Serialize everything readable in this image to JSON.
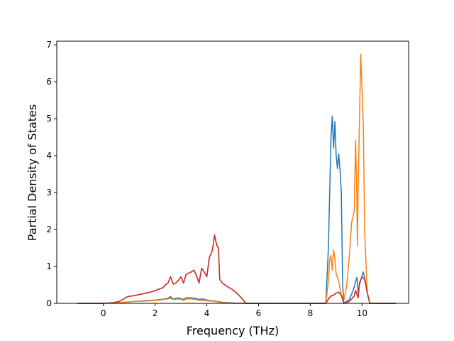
{
  "chart_data": {
    "type": "line",
    "xlabel": "Frequency (THz)",
    "ylabel": "Partial Density of States",
    "xlim": [
      -1.8,
      11.8
    ],
    "ylim": [
      0,
      7.1
    ],
    "xticks": [
      0,
      2,
      4,
      6,
      8,
      10
    ],
    "yticks": [
      0,
      1,
      2,
      3,
      4,
      5,
      6,
      7
    ],
    "grid": false,
    "series": [
      {
        "color": "#1f77b4",
        "points": [
          [
            -1.0,
            0
          ],
          [
            0,
            0
          ],
          [
            0.4,
            0.01
          ],
          [
            0.8,
            0.03
          ],
          [
            1.2,
            0.05
          ],
          [
            1.6,
            0.07
          ],
          [
            2.0,
            0.09
          ],
          [
            2.3,
            0.11
          ],
          [
            2.5,
            0.14
          ],
          [
            2.6,
            0.18
          ],
          [
            2.7,
            0.12
          ],
          [
            2.9,
            0.15
          ],
          [
            3.0,
            0.13
          ],
          [
            3.1,
            0.1
          ],
          [
            3.2,
            0.15
          ],
          [
            3.4,
            0.15
          ],
          [
            3.6,
            0.13
          ],
          [
            3.7,
            0.1
          ],
          [
            3.8,
            0.12
          ],
          [
            4.0,
            0.09
          ],
          [
            4.2,
            0.07
          ],
          [
            4.4,
            0.05
          ],
          [
            4.6,
            0.03
          ],
          [
            4.8,
            0.02
          ],
          [
            5.0,
            0.01
          ],
          [
            5.3,
            0
          ],
          [
            8.6,
            0
          ],
          [
            8.7,
            1.5
          ],
          [
            8.8,
            4.5
          ],
          [
            8.85,
            5.07
          ],
          [
            8.9,
            4.2
          ],
          [
            8.95,
            4.92
          ],
          [
            9.0,
            4.0
          ],
          [
            9.05,
            3.65
          ],
          [
            9.1,
            4.05
          ],
          [
            9.15,
            3.6
          ],
          [
            9.2,
            3.0
          ],
          [
            9.25,
            0.5
          ],
          [
            9.3,
            0
          ],
          [
            9.5,
            0.1
          ],
          [
            9.6,
            0.25
          ],
          [
            9.7,
            0.45
          ],
          [
            9.8,
            0.7
          ],
          [
            9.85,
            0.3
          ],
          [
            9.9,
            0.5
          ],
          [
            10.0,
            0.75
          ],
          [
            10.05,
            0.85
          ],
          [
            10.1,
            0.7
          ],
          [
            10.2,
            0.3
          ],
          [
            10.3,
            0
          ],
          [
            11.3,
            0
          ]
        ]
      },
      {
        "color": "#ff7f0e",
        "points": [
          [
            -1.0,
            0
          ],
          [
            0,
            0
          ],
          [
            0.4,
            0.01
          ],
          [
            0.8,
            0.03
          ],
          [
            1.2,
            0.05
          ],
          [
            1.6,
            0.06
          ],
          [
            2.0,
            0.08
          ],
          [
            2.3,
            0.1
          ],
          [
            2.5,
            0.12
          ],
          [
            2.6,
            0.14
          ],
          [
            2.7,
            0.1
          ],
          [
            2.9,
            0.12
          ],
          [
            3.0,
            0.11
          ],
          [
            3.1,
            0.08
          ],
          [
            3.2,
            0.12
          ],
          [
            3.4,
            0.12
          ],
          [
            3.6,
            0.1
          ],
          [
            3.7,
            0.08
          ],
          [
            3.8,
            0.09
          ],
          [
            4.0,
            0.07
          ],
          [
            4.2,
            0.06
          ],
          [
            4.4,
            0.04
          ],
          [
            4.6,
            0.02
          ],
          [
            4.8,
            0.01
          ],
          [
            5.0,
            0
          ],
          [
            8.6,
            0
          ],
          [
            8.7,
            0.6
          ],
          [
            8.75,
            1.2
          ],
          [
            8.8,
            1.3
          ],
          [
            8.85,
            0.9
          ],
          [
            8.9,
            1.45
          ],
          [
            8.95,
            1.2
          ],
          [
            9.0,
            0.8
          ],
          [
            9.1,
            0.6
          ],
          [
            9.2,
            0.2
          ],
          [
            9.3,
            0.1
          ],
          [
            9.4,
            0.45
          ],
          [
            9.5,
            1.2
          ],
          [
            9.6,
            2.2
          ],
          [
            9.7,
            2.5
          ],
          [
            9.75,
            4.42
          ],
          [
            9.8,
            2.9
          ],
          [
            9.82,
            1.55
          ],
          [
            9.85,
            3.1
          ],
          [
            9.95,
            6.75
          ],
          [
            10.0,
            5.8
          ],
          [
            10.05,
            4.8
          ],
          [
            10.1,
            2.0
          ],
          [
            10.2,
            0.3
          ],
          [
            10.3,
            0
          ],
          [
            11.3,
            0
          ]
        ]
      },
      {
        "color": "#2ca02c",
        "points": [
          [
            -1.0,
            0
          ],
          [
            0,
            0
          ],
          [
            0.4,
            0.02
          ],
          [
            0.6,
            0.05
          ],
          [
            0.8,
            0.12
          ],
          [
            0.9,
            0.17
          ],
          [
            1.0,
            0.19
          ],
          [
            1.2,
            0.21
          ],
          [
            1.4,
            0.24
          ],
          [
            1.6,
            0.27
          ],
          [
            1.8,
            0.3
          ],
          [
            2.0,
            0.34
          ],
          [
            2.1,
            0.37
          ],
          [
            2.2,
            0.4
          ],
          [
            2.3,
            0.42
          ],
          [
            2.4,
            0.5
          ],
          [
            2.5,
            0.55
          ],
          [
            2.6,
            0.72
          ],
          [
            2.7,
            0.52
          ],
          [
            2.8,
            0.55
          ],
          [
            2.9,
            0.62
          ],
          [
            3.0,
            0.72
          ],
          [
            3.1,
            0.55
          ],
          [
            3.2,
            0.78
          ],
          [
            3.3,
            0.82
          ],
          [
            3.4,
            0.85
          ],
          [
            3.5,
            0.9
          ],
          [
            3.6,
            0.75
          ],
          [
            3.7,
            0.55
          ],
          [
            3.8,
            0.95
          ],
          [
            3.9,
            0.85
          ],
          [
            4.0,
            0.72
          ],
          [
            4.1,
            1.25
          ],
          [
            4.2,
            1.4
          ],
          [
            4.25,
            1.6
          ],
          [
            4.3,
            1.85
          ],
          [
            4.35,
            1.68
          ],
          [
            4.4,
            1.55
          ],
          [
            4.45,
            1.5
          ],
          [
            4.5,
            0.65
          ],
          [
            4.6,
            0.55
          ],
          [
            4.8,
            0.45
          ],
          [
            5.0,
            0.37
          ],
          [
            5.2,
            0.25
          ],
          [
            5.4,
            0.1
          ],
          [
            5.5,
            0
          ],
          [
            8.6,
            0
          ],
          [
            8.7,
            0.12
          ],
          [
            8.8,
            0.2
          ],
          [
            8.9,
            0.22
          ],
          [
            9.0,
            0.28
          ],
          [
            9.1,
            0.3
          ],
          [
            9.2,
            0.22
          ],
          [
            9.3,
            0
          ],
          [
            9.5,
            0.05
          ],
          [
            9.6,
            0.12
          ],
          [
            9.7,
            0.2
          ],
          [
            9.75,
            0.35
          ],
          [
            9.8,
            0.25
          ],
          [
            9.85,
            0.15
          ],
          [
            9.9,
            0.55
          ],
          [
            10.0,
            0.72
          ],
          [
            10.1,
            0.65
          ],
          [
            10.2,
            0.3
          ],
          [
            10.3,
            0
          ],
          [
            11.3,
            0
          ]
        ]
      },
      {
        "color": "#d62728",
        "points": [
          [
            -1.0,
            0
          ],
          [
            0,
            0
          ],
          [
            0.4,
            0.02
          ],
          [
            0.6,
            0.05
          ],
          [
            0.8,
            0.12
          ],
          [
            0.9,
            0.17
          ],
          [
            1.0,
            0.19
          ],
          [
            1.2,
            0.21
          ],
          [
            1.4,
            0.24
          ],
          [
            1.6,
            0.27
          ],
          [
            1.8,
            0.3
          ],
          [
            2.0,
            0.34
          ],
          [
            2.1,
            0.37
          ],
          [
            2.2,
            0.4
          ],
          [
            2.3,
            0.42
          ],
          [
            2.4,
            0.5
          ],
          [
            2.5,
            0.55
          ],
          [
            2.6,
            0.72
          ],
          [
            2.7,
            0.52
          ],
          [
            2.8,
            0.55
          ],
          [
            2.9,
            0.62
          ],
          [
            3.0,
            0.72
          ],
          [
            3.1,
            0.55
          ],
          [
            3.2,
            0.78
          ],
          [
            3.3,
            0.82
          ],
          [
            3.4,
            0.85
          ],
          [
            3.5,
            0.9
          ],
          [
            3.6,
            0.75
          ],
          [
            3.7,
            0.55
          ],
          [
            3.8,
            0.95
          ],
          [
            3.9,
            0.85
          ],
          [
            4.0,
            0.72
          ],
          [
            4.1,
            1.25
          ],
          [
            4.2,
            1.4
          ],
          [
            4.25,
            1.6
          ],
          [
            4.3,
            1.85
          ],
          [
            4.35,
            1.68
          ],
          [
            4.4,
            1.55
          ],
          [
            4.45,
            1.5
          ],
          [
            4.5,
            0.65
          ],
          [
            4.6,
            0.55
          ],
          [
            4.8,
            0.45
          ],
          [
            5.0,
            0.37
          ],
          [
            5.2,
            0.25
          ],
          [
            5.4,
            0.1
          ],
          [
            5.5,
            0
          ],
          [
            8.6,
            0
          ],
          [
            8.7,
            0.12
          ],
          [
            8.8,
            0.2
          ],
          [
            8.9,
            0.22
          ],
          [
            9.0,
            0.28
          ],
          [
            9.1,
            0.3
          ],
          [
            9.2,
            0.22
          ],
          [
            9.3,
            0
          ],
          [
            9.5,
            0.05
          ],
          [
            9.6,
            0.12
          ],
          [
            9.7,
            0.2
          ],
          [
            9.75,
            0.35
          ],
          [
            9.8,
            0.25
          ],
          [
            9.85,
            0.15
          ],
          [
            9.9,
            0.55
          ],
          [
            10.0,
            0.72
          ],
          [
            10.1,
            0.65
          ],
          [
            10.2,
            0.3
          ],
          [
            10.3,
            0
          ],
          [
            11.3,
            0
          ]
        ]
      }
    ]
  }
}
